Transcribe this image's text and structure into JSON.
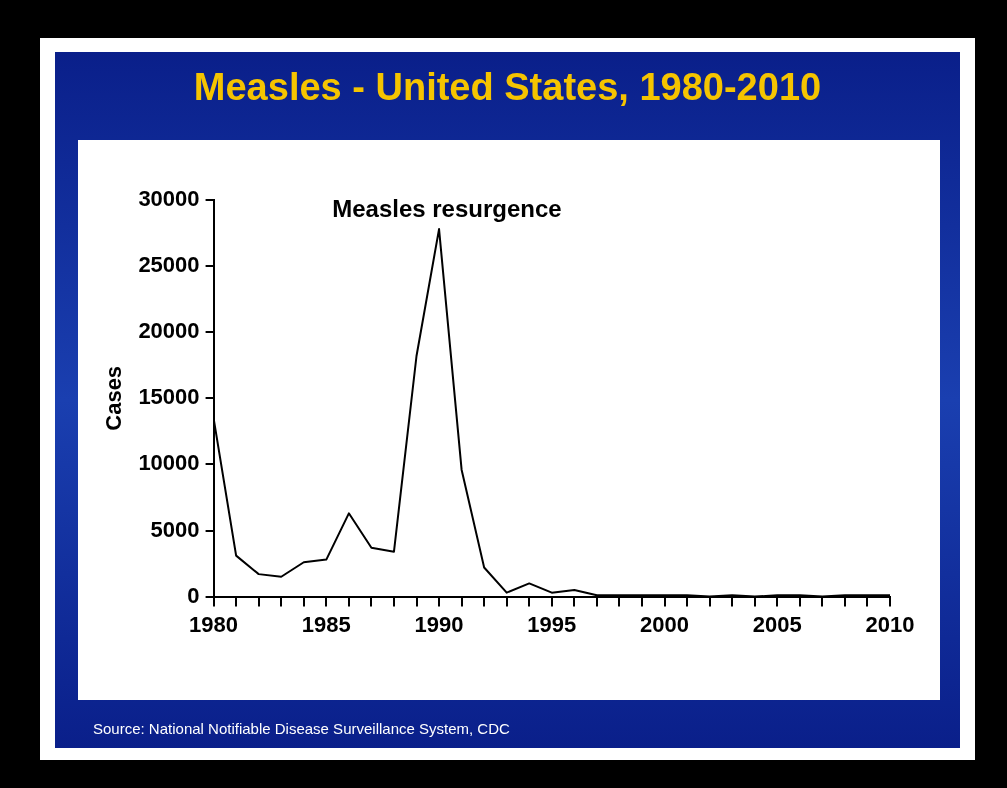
{
  "chart_data": {
    "type": "line",
    "title": "Measles - United States, 1980-2010",
    "ylabel": "Cases",
    "x": [
      1980,
      1981,
      1982,
      1983,
      1984,
      1985,
      1986,
      1987,
      1988,
      1989,
      1990,
      1991,
      1992,
      1993,
      1994,
      1995,
      1996,
      1997,
      1998,
      1999,
      2000,
      2001,
      2002,
      2003,
      2004,
      2005,
      2006,
      2007,
      2008,
      2009,
      2010
    ],
    "series": [
      {
        "color": "#000000",
        "values": [
          13500,
          3100,
          1700,
          1500,
          2600,
          2800,
          6300,
          3700,
          3400,
          18200,
          27800,
          9600,
          2200,
          300,
          1000,
          300,
          500,
          100,
          100,
          100,
          100,
          100,
          0,
          100,
          0,
          100,
          100,
          0,
          100,
          100,
          100
        ]
      }
    ],
    "xlim": [
      1980,
      2010
    ],
    "ylim": [
      0,
      30000
    ],
    "xticks": [
      1980,
      {
        "value": 1981,
        "label": null
      },
      {
        "value": 1982,
        "label": null
      },
      {
        "value": 1983,
        "label": null
      },
      {
        "value": 1984,
        "label": null
      },
      1985,
      {
        "value": 1986,
        "label": null
      },
      {
        "value": 1987,
        "label": null
      },
      {
        "value": 1988,
        "label": null
      },
      {
        "value": 1989,
        "label": null
      },
      1990,
      {
        "value": 1991,
        "label": null
      },
      {
        "value": 1992,
        "label": null
      },
      {
        "value": 1993,
        "label": null
      },
      {
        "value": 1994,
        "label": null
      },
      1995,
      {
        "value": 1996,
        "label": null
      },
      {
        "value": 1997,
        "label": null
      },
      {
        "value": 1998,
        "label": null
      },
      {
        "value": 1999,
        "label": null
      },
      2000,
      {
        "value": 2001,
        "label": null
      },
      {
        "value": 2002,
        "label": null
      },
      {
        "value": 2003,
        "label": null
      },
      {
        "value": 2004,
        "label": null
      },
      2005,
      {
        "value": 2006,
        "label": null
      },
      {
        "value": 2007,
        "label": null
      },
      {
        "value": 2008,
        "label": null
      },
      {
        "value": 2009,
        "label": null
      },
      2010
    ],
    "yticks": [
      0,
      5000,
      10000,
      15000,
      20000,
      25000,
      30000
    ],
    "grid": false,
    "legend": false,
    "marker": "none",
    "line_style": "solid",
    "annotations": [
      "Measles resurgence",
      "Source: National Notifiable Disease Surveillance System, CDC"
    ]
  }
}
